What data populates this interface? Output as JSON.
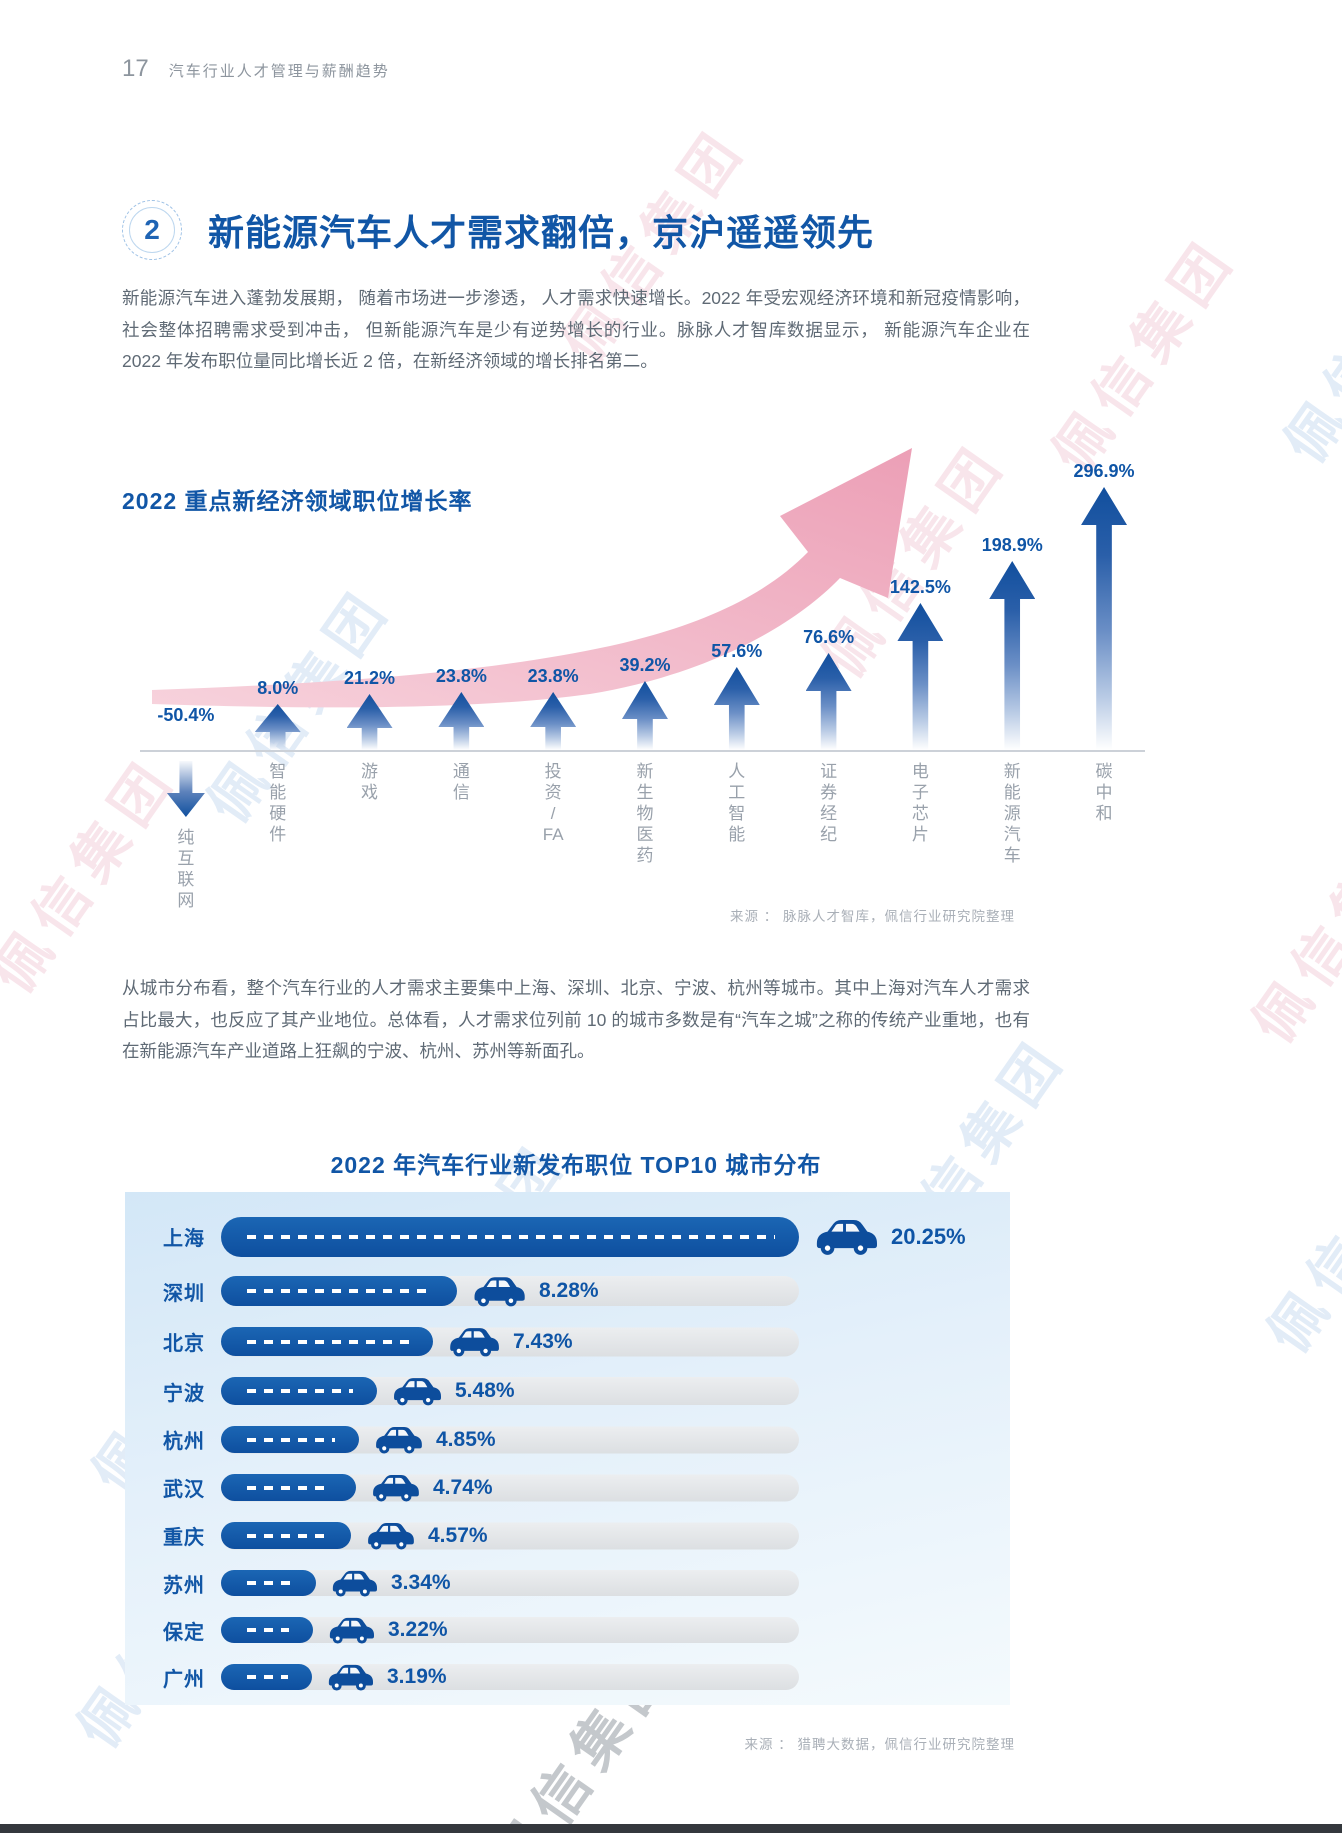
{
  "page": {
    "number": "17",
    "header_title": "汽车行业人才管理与薪酬趋势"
  },
  "section": {
    "number": "2",
    "title": "新能源汽车人才需求翻倍，京沪遥遥领先",
    "paragraph1": "新能源汽车进入蓬勃发展期， 随着市场进一步渗透， 人才需求快速增长。2022 年受宏观经济环境和新冠疫情影响，社会整体招聘需求受到冲击， 但新能源汽车是少有逆势增长的行业。脉脉人才智库数据显示， 新能源汽车企业在 2022 年发布职位量同比增长近 2 倍，在新经济领域的增长排名第二。",
    "paragraph2": "从城市分布看，整个汽车行业的人才需求主要集中上海、深圳、北京、宁波、杭州等城市。其中上海对汽车人才需求占比最大，也反应了其产业地位。总体看，人才需求位列前 10 的城市多数是有“汽车之城”之称的传统产业重地，也有在新能源汽车产业道路上狂飙的宁波、杭州、苏州等新面孔。"
  },
  "chart_data": [
    {
      "type": "bar",
      "title": "2022 重点新经济领域职位增长率",
      "categories": [
        "纯互联网",
        "智能硬件",
        "游戏",
        "通信",
        "投资/FA",
        "新生物医药",
        "人工智能",
        "证券经纪",
        "电子芯片",
        "新能源汽车",
        "碳中和"
      ],
      "values": [
        -50.4,
        8.0,
        21.2,
        23.8,
        23.8,
        39.2,
        57.6,
        76.6,
        142.5,
        198.9,
        296.9
      ],
      "labels": [
        "-50.4%",
        "8.0%",
        "21.2%",
        "23.8%",
        "23.8%",
        "39.2%",
        "57.6%",
        "76.6%",
        "142.5%",
        "198.9%",
        "296.9%"
      ],
      "xlabel": "",
      "ylabel": "",
      "legend": [],
      "grid": false,
      "source": "来源 ：  脉脉人才智库，佩信行业研究院整理"
    },
    {
      "type": "bar",
      "title": "2022 年汽车行业新发布职位 TOP10 城市分布",
      "categories": [
        "上海",
        "深圳",
        "北京",
        "宁波",
        "杭州",
        "武汉",
        "重庆",
        "苏州",
        "保定",
        "广州"
      ],
      "values": [
        20.25,
        8.28,
        7.43,
        5.48,
        4.85,
        4.74,
        4.57,
        3.34,
        3.22,
        3.19
      ],
      "labels": [
        "20.25%",
        "8.28%",
        "7.43%",
        "5.48%",
        "4.85%",
        "4.74%",
        "4.57%",
        "3.34%",
        "3.22%",
        "3.19%"
      ],
      "xlabel": "",
      "ylabel": "",
      "legend": [],
      "grid": false,
      "source": "来源 ：  猎聘大数据，佩信行业研究院整理"
    }
  ],
  "watermark": {
    "text": "佩信集团"
  },
  "colors": {
    "accent_blue": "#1156a6",
    "arrow_blue": "#114f9e",
    "bar_blue": "#0e4f9f",
    "trend_pink": "#f0b0c2",
    "body_gray": "#5f6a75",
    "label_gray": "#99a1ab",
    "source_gray": "#a9afb7",
    "panel_blue": "#d3e7f7"
  }
}
